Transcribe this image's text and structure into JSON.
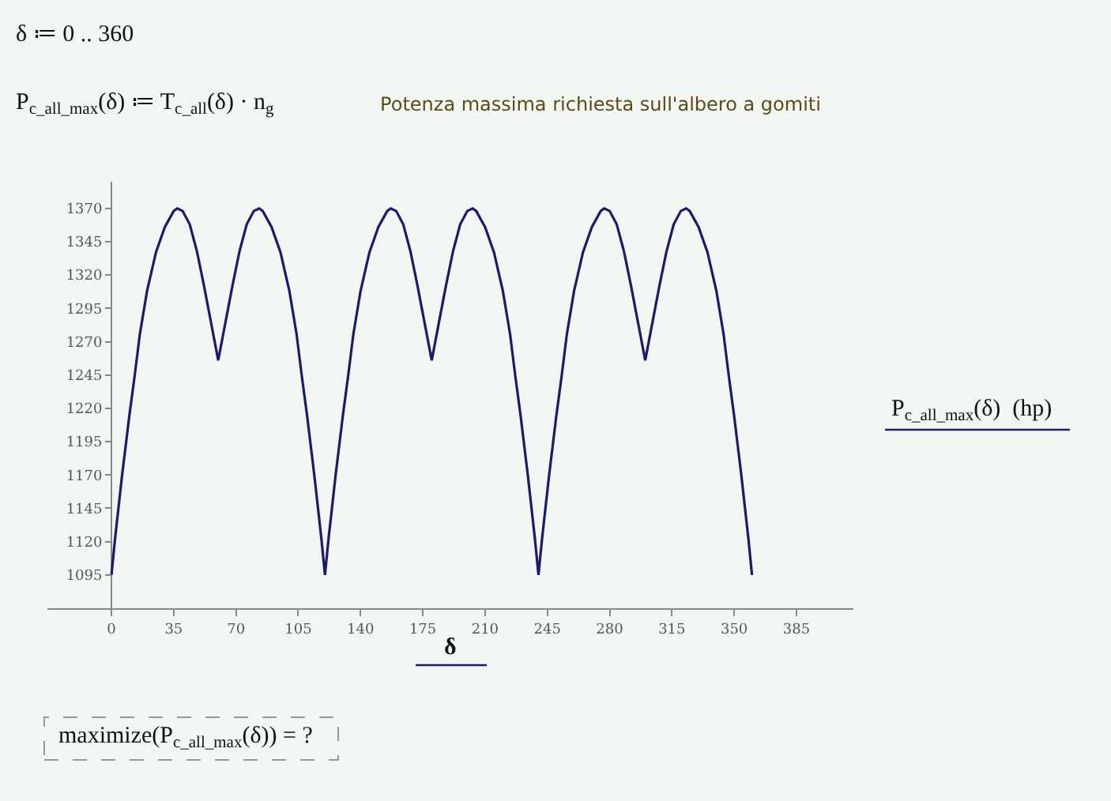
{
  "chart_data": {
    "type": "line",
    "title": "Potenza massima richiesta sull'albero a gomiti",
    "xlabel": "δ",
    "ylabel": "P$_{c_all_max}$(δ)  (hp)",
    "annotations": [
      "δ ≔ 0 .. 360",
      "P$_{c_all_max}$(δ) ≔ T$_{c_all}$(δ) · n$_{g}$",
      "maximize(P$_{c_all_max}$(δ)) = ?"
    ],
    "series": [
      {
        "color": "#1a1a6e",
        "x": [
          0,
          2,
          4,
          6,
          8,
          10,
          13,
          16,
          20,
          25,
          30,
          35,
          37,
          40,
          44,
          48,
          52,
          56,
          60,
          64,
          68,
          72,
          76,
          80,
          83,
          85,
          90,
          95,
          100,
          104,
          107,
          110,
          112,
          114,
          116,
          118,
          120,
          122,
          124,
          126,
          128,
          130,
          133,
          136,
          140,
          145,
          150,
          155,
          157,
          160,
          164,
          168,
          172,
          176,
          180,
          184,
          188,
          192,
          196,
          200,
          203,
          205,
          210,
          215,
          220,
          224,
          227,
          230,
          232,
          234,
          236,
          238,
          240,
          242,
          244,
          246,
          248,
          250,
          253,
          256,
          260,
          265,
          270,
          275,
          277,
          280,
          284,
          288,
          292,
          296,
          300,
          304,
          308,
          312,
          316,
          320,
          323,
          325,
          330,
          335,
          340,
          344,
          347,
          350,
          352,
          354,
          356,
          358,
          360
        ],
        "values": [
          1095,
          1122,
          1146,
          1170,
          1192,
          1214,
          1244,
          1276,
          1308,
          1337,
          1356,
          1368,
          1370,
          1368,
          1358,
          1338,
          1312,
          1284,
          1256,
          1284,
          1312,
          1338,
          1358,
          1368,
          1370,
          1368,
          1356,
          1337,
          1308,
          1276,
          1244,
          1214,
          1192,
          1170,
          1146,
          1122,
          1095,
          1122,
          1146,
          1170,
          1192,
          1214,
          1244,
          1276,
          1308,
          1337,
          1356,
          1368,
          1370,
          1368,
          1358,
          1338,
          1312,
          1284,
          1256,
          1284,
          1312,
          1338,
          1358,
          1368,
          1370,
          1368,
          1356,
          1337,
          1308,
          1276,
          1244,
          1214,
          1192,
          1170,
          1146,
          1122,
          1095,
          1122,
          1146,
          1170,
          1192,
          1214,
          1244,
          1276,
          1308,
          1337,
          1356,
          1368,
          1370,
          1368,
          1358,
          1338,
          1312,
          1284,
          1256,
          1284,
          1312,
          1338,
          1358,
          1368,
          1370,
          1368,
          1356,
          1337,
          1308,
          1276,
          1244,
          1214,
          1192,
          1170,
          1146,
          1122,
          1095
        ]
      }
    ],
    "xlim": [
      -36,
      417
    ],
    "ylim": [
      1070,
      1390
    ],
    "xticks": [
      0,
      35,
      70,
      105,
      140,
      175,
      210,
      245,
      280,
      315,
      350,
      385
    ],
    "yticks": [
      1095,
      1120,
      1145,
      1170,
      1195,
      1220,
      1245,
      1270,
      1295,
      1320,
      1345,
      1370
    ],
    "grid": false,
    "marker": "none",
    "line_style": "solid"
  }
}
